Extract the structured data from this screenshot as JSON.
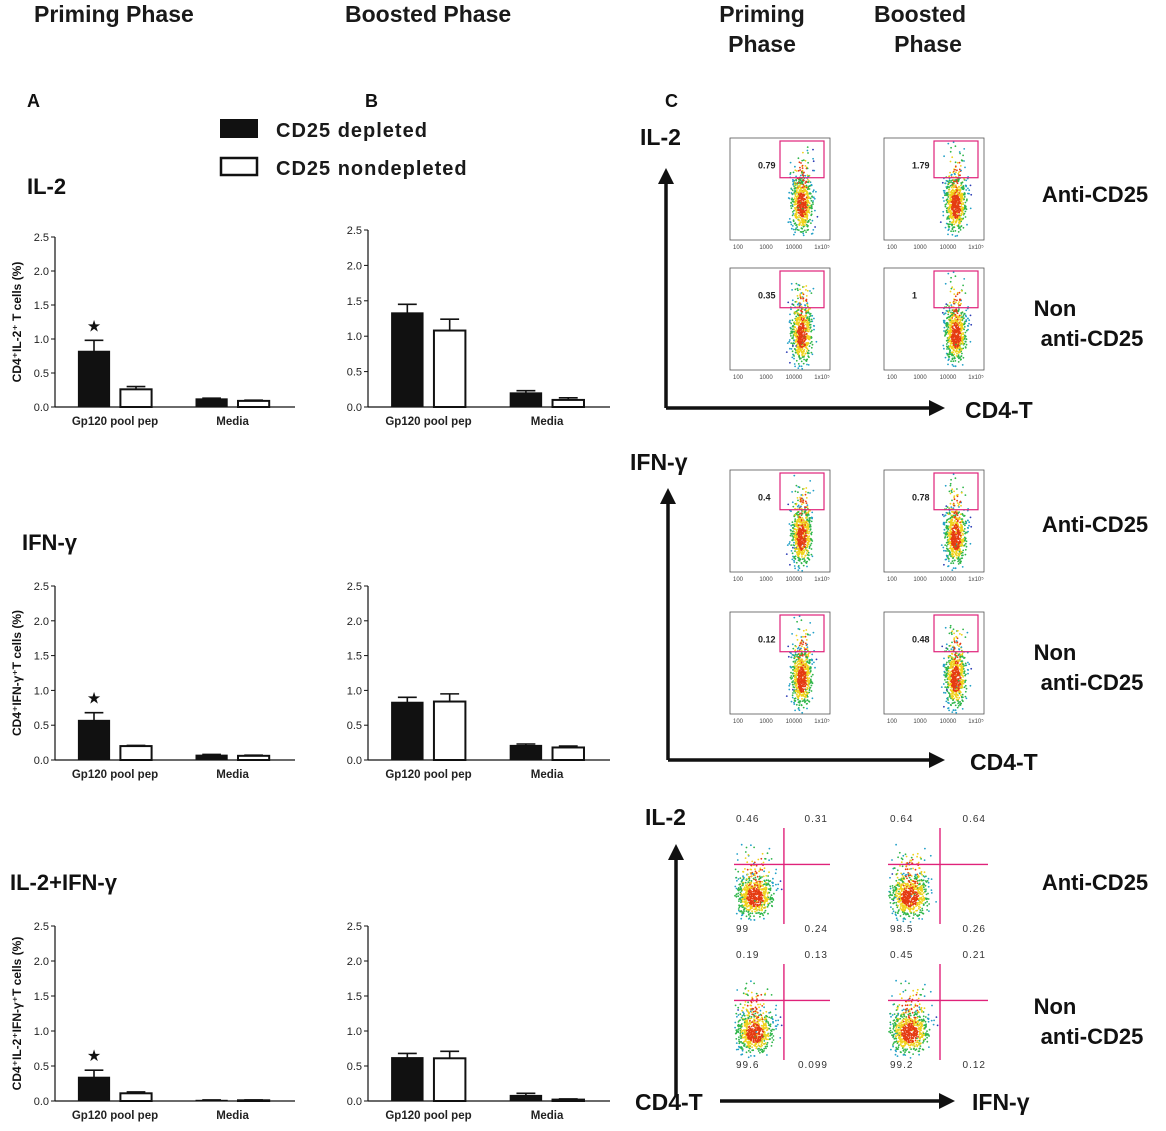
{
  "headers": {
    "priming_left": "Priming Phase",
    "boosted_left": "Boosted Phase",
    "priming_right": [
      "Priming",
      "Phase"
    ],
    "boosted_right": [
      "Boosted",
      "Phase"
    ]
  },
  "panel_letters": [
    "A",
    "B",
    "C"
  ],
  "legend": [
    {
      "label": "CD25 depleted",
      "color": "#111111"
    },
    {
      "label": "CD25 nondepleted",
      "color": "#ffffff"
    }
  ],
  "significance_marker": "★",
  "chart_data": [
    {
      "type": "bar",
      "row_title": "IL-2",
      "phase": "Priming Phase",
      "ylabel": "CD4⁺IL-2⁺ T cells (%)",
      "categories": [
        "Gp120 pool pep",
        "Media"
      ],
      "ylim": [
        0,
        2.5
      ],
      "yticks": [
        "0.0",
        "0.5",
        "1.0",
        "1.5",
        "2.0",
        "2.5"
      ],
      "series": [
        {
          "name": "CD25 depleted",
          "values": [
            0.82,
            0.12
          ],
          "errors": [
            0.16,
            0.01
          ]
        },
        {
          "name": "CD25 nondepleted",
          "values": [
            0.26,
            0.09
          ],
          "errors": [
            0.04,
            0.01
          ]
        }
      ],
      "significant": [
        true,
        false
      ]
    },
    {
      "type": "bar",
      "row_title": "",
      "phase": "Boosted Phase",
      "ylabel": "",
      "categories": [
        "Gp120 pool pep",
        "Media"
      ],
      "ylim": [
        0,
        2.5
      ],
      "yticks": [
        "0.0",
        "0.5",
        "1.0",
        "1.5",
        "2.0",
        "2.5"
      ],
      "series": [
        {
          "name": "CD25 depleted",
          "values": [
            1.33,
            0.2
          ],
          "errors": [
            0.12,
            0.03
          ]
        },
        {
          "name": "CD25 nondepleted",
          "values": [
            1.08,
            0.1
          ],
          "errors": [
            0.16,
            0.03
          ]
        }
      ],
      "significant": [
        false,
        false
      ]
    },
    {
      "type": "bar",
      "row_title": "IFN-γ",
      "phase": "Priming Phase",
      "ylabel": "CD4⁺IFN-γ⁺T cells (%)",
      "categories": [
        "Gp120 pool pep",
        "Media"
      ],
      "ylim": [
        0,
        2.5
      ],
      "yticks": [
        "0.0",
        "0.5",
        "1.0",
        "1.5",
        "2.0",
        "2.5"
      ],
      "series": [
        {
          "name": "CD25 depleted",
          "values": [
            0.57,
            0.07
          ],
          "errors": [
            0.11,
            0.01
          ]
        },
        {
          "name": "CD25 nondepleted",
          "values": [
            0.2,
            0.06
          ],
          "errors": [
            0.01,
            0.01
          ]
        }
      ],
      "significant": [
        true,
        false
      ]
    },
    {
      "type": "bar",
      "row_title": "",
      "phase": "Boosted Phase",
      "ylabel": "",
      "categories": [
        "Gp120 pool pep",
        "Media"
      ],
      "ylim": [
        0,
        2.5
      ],
      "yticks": [
        "0.0",
        "0.5",
        "1.0",
        "1.5",
        "2.0",
        "2.5"
      ],
      "series": [
        {
          "name": "CD25 depleted",
          "values": [
            0.83,
            0.21
          ],
          "errors": [
            0.07,
            0.02
          ]
        },
        {
          "name": "CD25 nondepleted",
          "values": [
            0.84,
            0.18
          ],
          "errors": [
            0.11,
            0.02
          ]
        }
      ],
      "significant": [
        false,
        false
      ]
    },
    {
      "type": "bar",
      "row_title": "IL-2+IFN-γ",
      "phase": "Priming Phase",
      "ylabel": "CD4⁺IL-2⁺IFN-γ⁺T cells (%)",
      "categories": [
        "Gp120 pool pep",
        "Media"
      ],
      "ylim": [
        0,
        2.5
      ],
      "yticks": [
        "0.0",
        "0.5",
        "1.0",
        "1.5",
        "2.0",
        "2.5"
      ],
      "series": [
        {
          "name": "CD25 depleted",
          "values": [
            0.34,
            0.01
          ],
          "errors": [
            0.1,
            0.005
          ]
        },
        {
          "name": "CD25 nondepleted",
          "values": [
            0.11,
            0.01
          ],
          "errors": [
            0.02,
            0.005
          ]
        }
      ],
      "significant": [
        true,
        false
      ]
    },
    {
      "type": "bar",
      "row_title": "",
      "phase": "Boosted Phase",
      "ylabel": "",
      "categories": [
        "Gp120 pool pep",
        "Media"
      ],
      "ylim": [
        0,
        2.5
      ],
      "yticks": [
        "0.0",
        "0.5",
        "1.0",
        "1.5",
        "2.0",
        "2.5"
      ],
      "series": [
        {
          "name": "CD25 depleted",
          "values": [
            0.62,
            0.08
          ],
          "errors": [
            0.06,
            0.03
          ]
        },
        {
          "name": "CD25 nondepleted",
          "values": [
            0.61,
            0.02
          ],
          "errors": [
            0.1,
            0.01
          ]
        }
      ],
      "significant": [
        false,
        false
      ]
    }
  ],
  "flow_panels": [
    {
      "y_axis": "IL-2",
      "x_axis": "CD4-T",
      "conditions": [
        [
          "Anti-CD25"
        ],
        [
          "Non",
          "anti-CD25"
        ]
      ],
      "plots": [
        {
          "gate": "0.79"
        },
        {
          "gate": "1.79"
        },
        {
          "gate": "0.35"
        },
        {
          "gate": "1"
        }
      ]
    },
    {
      "y_axis": "IFN-γ",
      "x_axis": "CD4-T",
      "conditions": [
        [
          "Anti-CD25"
        ],
        [
          "Non",
          "anti-CD25"
        ]
      ],
      "plots": [
        {
          "gate": "0.4"
        },
        {
          "gate": "0.78"
        },
        {
          "gate": "0.12"
        },
        {
          "gate": "0.48"
        }
      ]
    },
    {
      "y_axis": "IL-2",
      "x_axis": "IFN-γ",
      "origin_label": "CD4-T",
      "conditions": [
        [
          "Anti-CD25"
        ],
        [
          "Non",
          "anti-CD25"
        ]
      ],
      "plots": [
        {
          "quadrants": [
            "0.46",
            "0.31",
            "99",
            "0.24"
          ]
        },
        {
          "quadrants": [
            "0.64",
            "0.64",
            "98.5",
            "0.26"
          ]
        },
        {
          "quadrants": [
            "0.19",
            "0.13",
            "99.6",
            "0.099"
          ]
        },
        {
          "quadrants": [
            "0.45",
            "0.21",
            "99.2",
            "0.12"
          ]
        }
      ]
    }
  ],
  "colors": {
    "gate": "#e0227a",
    "dot_low": "#2b3bb5",
    "dot_high": "#e53b12"
  }
}
